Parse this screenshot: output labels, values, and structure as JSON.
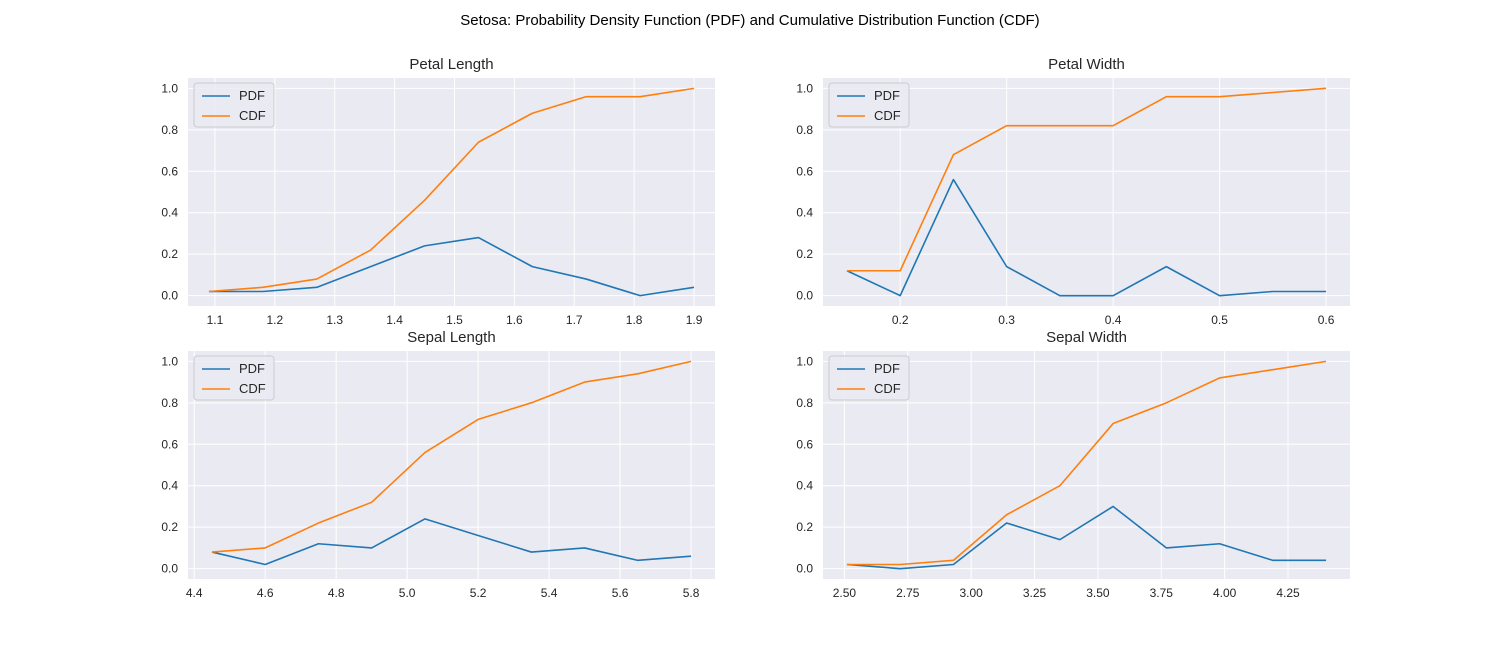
{
  "title": "Setosa: Probability Density Function (PDF) and Cumulative Distribution Function (CDF)",
  "colors": {
    "pdf": "#1f77b4",
    "cdf": "#ff7f0e",
    "plot_bg": "#eaeaf2",
    "grid": "#ffffff"
  },
  "chart_data": [
    {
      "type": "line",
      "title": "Petal Length",
      "x": [
        1.09,
        1.18,
        1.27,
        1.36,
        1.45,
        1.54,
        1.63,
        1.72,
        1.81,
        1.9
      ],
      "series": [
        {
          "name": "PDF",
          "values": [
            0.02,
            0.02,
            0.04,
            0.14,
            0.24,
            0.28,
            0.14,
            0.08,
            0.0,
            0.04
          ]
        },
        {
          "name": "CDF",
          "values": [
            0.02,
            0.04,
            0.08,
            0.22,
            0.46,
            0.74,
            0.88,
            0.96,
            0.96,
            1.0
          ]
        }
      ],
      "xlim": [
        1.055,
        1.935
      ],
      "ylim": [
        -0.05,
        1.05
      ],
      "xticks": [
        1.1,
        1.2,
        1.3,
        1.4,
        1.5,
        1.6,
        1.7,
        1.8,
        1.9
      ],
      "xticklabels": [
        "1.1",
        "1.2",
        "1.3",
        "1.4",
        "1.5",
        "1.6",
        "1.7",
        "1.8",
        "1.9"
      ],
      "yticks": [
        0.0,
        0.2,
        0.4,
        0.6,
        0.8,
        1.0
      ],
      "yticklabels": [
        "0.0",
        "0.2",
        "0.4",
        "0.6",
        "0.8",
        "1.0"
      ],
      "grid": true,
      "legend": "upper-left"
    },
    {
      "type": "line",
      "title": "Petal Width",
      "x": [
        0.15,
        0.2,
        0.25,
        0.3,
        0.35,
        0.4,
        0.45,
        0.5,
        0.55,
        0.6
      ],
      "series": [
        {
          "name": "PDF",
          "values": [
            0.12,
            0.0,
            0.56,
            0.14,
            0.0,
            0.0,
            0.14,
            0.0,
            0.02,
            0.02
          ]
        },
        {
          "name": "CDF",
          "values": [
            0.12,
            0.12,
            0.68,
            0.82,
            0.82,
            0.82,
            0.96,
            0.96,
            0.98,
            1.0
          ]
        }
      ],
      "xlim": [
        0.1275,
        0.6225
      ],
      "ylim": [
        -0.05,
        1.05
      ],
      "xticks": [
        0.2,
        0.3,
        0.4,
        0.5,
        0.6
      ],
      "xticklabels": [
        "0.2",
        "0.3",
        "0.4",
        "0.5",
        "0.6"
      ],
      "yticks": [
        0.0,
        0.2,
        0.4,
        0.6,
        0.8,
        1.0
      ],
      "yticklabels": [
        "0.0",
        "0.2",
        "0.4",
        "0.6",
        "0.8",
        "1.0"
      ],
      "grid": true,
      "legend": "upper-left"
    },
    {
      "type": "line",
      "title": "Sepal Length",
      "x": [
        4.45,
        4.6,
        4.75,
        4.9,
        5.05,
        5.2,
        5.35,
        5.5,
        5.65,
        5.8
      ],
      "series": [
        {
          "name": "PDF",
          "values": [
            0.08,
            0.02,
            0.12,
            0.1,
            0.24,
            0.16,
            0.08,
            0.1,
            0.04,
            0.06
          ]
        },
        {
          "name": "CDF",
          "values": [
            0.08,
            0.1,
            0.22,
            0.32,
            0.56,
            0.72,
            0.8,
            0.9,
            0.94,
            1.0
          ]
        }
      ],
      "xlim": [
        4.3825,
        5.8675
      ],
      "ylim": [
        -0.05,
        1.05
      ],
      "xticks": [
        4.4,
        4.6,
        4.8,
        5.0,
        5.2,
        5.4,
        5.6,
        5.8
      ],
      "xticklabels": [
        "4.4",
        "4.6",
        "4.8",
        "5.0",
        "5.2",
        "5.4",
        "5.6",
        "5.8"
      ],
      "yticks": [
        0.0,
        0.2,
        0.4,
        0.6,
        0.8,
        1.0
      ],
      "yticklabels": [
        "0.0",
        "0.2",
        "0.4",
        "0.6",
        "0.8",
        "1.0"
      ],
      "grid": true,
      "legend": "upper-left"
    },
    {
      "type": "line",
      "title": "Sepal Width",
      "x": [
        2.51,
        2.72,
        2.93,
        3.14,
        3.35,
        3.56,
        3.77,
        3.98,
        4.19,
        4.4
      ],
      "series": [
        {
          "name": "PDF",
          "values": [
            0.02,
            0.0,
            0.02,
            0.22,
            0.14,
            0.3,
            0.1,
            0.12,
            0.04,
            0.04
          ]
        },
        {
          "name": "CDF",
          "values": [
            0.02,
            0.02,
            0.04,
            0.26,
            0.4,
            0.7,
            0.8,
            0.92,
            0.96,
            1.0
          ]
        }
      ],
      "xlim": [
        2.4155,
        4.4945
      ],
      "ylim": [
        -0.05,
        1.05
      ],
      "xticks": [
        2.5,
        2.75,
        3.0,
        3.25,
        3.5,
        3.75,
        4.0,
        4.25
      ],
      "xticklabels": [
        "2.50",
        "2.75",
        "3.00",
        "3.25",
        "3.50",
        "3.75",
        "4.00",
        "4.25"
      ],
      "yticks": [
        0.0,
        0.2,
        0.4,
        0.6,
        0.8,
        1.0
      ],
      "yticklabels": [
        "0.0",
        "0.2",
        "0.4",
        "0.6",
        "0.8",
        "1.0"
      ],
      "grid": true,
      "legend": "upper-left"
    }
  ]
}
